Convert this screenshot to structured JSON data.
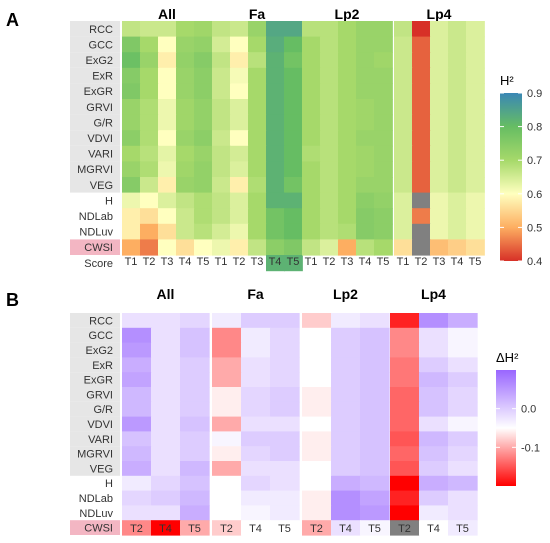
{
  "panel_labels": [
    "A",
    "B"
  ],
  "chart_data": [
    {
      "type": "heatmap",
      "panel": "A",
      "facets": [
        "All",
        "Fa",
        "Lp2",
        "Lp4"
      ],
      "rows": [
        "RCC",
        "GCC",
        "ExG2",
        "ExR",
        "ExGR",
        "GRVI",
        "G/R",
        "VDVI",
        "VARI",
        "MGRVI",
        "VEG",
        "H",
        "NDLab",
        "NDLuv",
        "CWSI",
        "Score"
      ],
      "columns": [
        "T1",
        "T2",
        "T3",
        "T4",
        "T5"
      ],
      "legend": {
        "title": "H²",
        "ticks": [
          "0.9",
          "0.8",
          "0.7",
          "0.6",
          "0.5",
          "0.4"
        ],
        "range": [
          0.4,
          0.9
        ],
        "colors": [
          "#d73027",
          "#fdae61",
          "#ffffbf",
          "#a6d96a",
          "#66bd63",
          "#3a87b5"
        ]
      },
      "values": {
        "All": [
          [
            0.67,
            0.66,
            0.66,
            0.7,
            0.71
          ],
          [
            0.76,
            0.7,
            0.6,
            0.72,
            0.73
          ],
          [
            0.79,
            0.72,
            0.58,
            0.73,
            0.75
          ],
          [
            0.75,
            0.7,
            0.6,
            0.72,
            0.74
          ],
          [
            0.76,
            0.7,
            0.6,
            0.72,
            0.74
          ],
          [
            0.72,
            0.69,
            0.62,
            0.71,
            0.73
          ],
          [
            0.72,
            0.69,
            0.62,
            0.71,
            0.73
          ],
          [
            0.74,
            0.69,
            0.6,
            0.72,
            0.74
          ],
          [
            0.7,
            0.68,
            0.63,
            0.7,
            0.72
          ],
          [
            0.72,
            0.69,
            0.62,
            0.71,
            0.73
          ],
          [
            0.75,
            0.66,
            0.58,
            0.72,
            0.73
          ],
          [
            0.62,
            0.6,
            0.64,
            0.67,
            0.69
          ],
          [
            0.58,
            0.56,
            0.6,
            0.66,
            0.69
          ],
          [
            0.58,
            0.5,
            0.56,
            0.66,
            0.68
          ],
          [
            0.5,
            0.46,
            0.6,
            0.56,
            0.6
          ],
          [
            null,
            null,
            null,
            null,
            null
          ]
        ],
        "Fa": [
          [
            0.67,
            0.66,
            0.72,
            0.84,
            0.84
          ],
          [
            0.65,
            0.6,
            0.7,
            0.83,
            0.8
          ],
          [
            0.67,
            0.58,
            0.68,
            0.82,
            0.78
          ],
          [
            0.66,
            0.61,
            0.7,
            0.82,
            0.8
          ],
          [
            0.66,
            0.6,
            0.7,
            0.82,
            0.8
          ],
          [
            0.67,
            0.64,
            0.7,
            0.82,
            0.8
          ],
          [
            0.67,
            0.64,
            0.7,
            0.82,
            0.8
          ],
          [
            0.66,
            0.6,
            0.7,
            0.82,
            0.8
          ],
          [
            0.67,
            0.65,
            0.7,
            0.82,
            0.8
          ],
          [
            0.67,
            0.64,
            0.7,
            0.82,
            0.8
          ],
          [
            0.66,
            0.58,
            0.69,
            0.82,
            0.78
          ],
          [
            0.67,
            0.64,
            0.7,
            0.82,
            0.82
          ],
          [
            0.67,
            0.64,
            0.7,
            0.78,
            0.8
          ],
          [
            0.65,
            0.62,
            0.7,
            0.78,
            0.8
          ],
          [
            0.62,
            0.58,
            0.67,
            0.74,
            0.76
          ],
          [
            null,
            null,
            null,
            0.82,
            0.82
          ]
        ],
        "Lp2": [
          [
            0.68,
            0.68,
            0.7,
            0.72,
            0.72
          ],
          [
            0.7,
            0.68,
            0.7,
            0.72,
            0.72
          ],
          [
            0.7,
            0.68,
            0.7,
            0.72,
            0.71
          ],
          [
            0.7,
            0.68,
            0.7,
            0.72,
            0.72
          ],
          [
            0.7,
            0.68,
            0.7,
            0.72,
            0.72
          ],
          [
            0.7,
            0.68,
            0.7,
            0.71,
            0.72
          ],
          [
            0.7,
            0.68,
            0.7,
            0.71,
            0.72
          ],
          [
            0.7,
            0.68,
            0.7,
            0.72,
            0.72
          ],
          [
            0.69,
            0.68,
            0.7,
            0.71,
            0.72
          ],
          [
            0.7,
            0.68,
            0.7,
            0.71,
            0.72
          ],
          [
            0.7,
            0.68,
            0.7,
            0.72,
            0.72
          ],
          [
            0.7,
            0.68,
            0.7,
            0.74,
            0.73
          ],
          [
            0.7,
            0.68,
            0.7,
            0.75,
            0.74
          ],
          [
            0.7,
            0.68,
            0.69,
            0.75,
            0.74
          ],
          [
            0.67,
            0.64,
            0.5,
            0.68,
            0.7
          ],
          [
            null,
            null,
            null,
            null,
            null
          ]
        ],
        "Lp4": [
          [
            0.67,
            0.4,
            0.64,
            0.66,
            0.64
          ],
          [
            0.66,
            0.44,
            0.64,
            0.66,
            0.64
          ],
          [
            0.66,
            0.44,
            0.64,
            0.66,
            0.64
          ],
          [
            0.66,
            0.44,
            0.64,
            0.66,
            0.64
          ],
          [
            0.66,
            0.44,
            0.64,
            0.66,
            0.64
          ],
          [
            0.66,
            0.44,
            0.64,
            0.66,
            0.64
          ],
          [
            0.66,
            0.44,
            0.64,
            0.66,
            0.64
          ],
          [
            0.66,
            0.44,
            0.64,
            0.66,
            0.64
          ],
          [
            0.66,
            0.44,
            0.64,
            0.66,
            0.64
          ],
          [
            0.66,
            0.44,
            0.64,
            0.66,
            0.64
          ],
          [
            0.66,
            0.44,
            0.64,
            0.66,
            0.64
          ],
          [
            0.64,
            null,
            0.62,
            0.64,
            0.62
          ],
          [
            0.64,
            0.46,
            0.62,
            0.64,
            0.62
          ],
          [
            0.64,
            null,
            0.62,
            0.64,
            0.62
          ],
          [
            0.56,
            null,
            0.52,
            0.54,
            0.56
          ],
          [
            null,
            null,
            null,
            null,
            null
          ]
        ]
      }
    },
    {
      "type": "heatmap",
      "panel": "B",
      "facets": [
        "All",
        "Fa",
        "Lp2",
        "Lp4"
      ],
      "rows": [
        "RCC",
        "GCC",
        "ExG2",
        "ExR",
        "ExGR",
        "GRVI",
        "G/R",
        "VDVI",
        "VARI",
        "MGRVI",
        "VEG",
        "H",
        "NDLab",
        "NDLuv",
        "CWSI"
      ],
      "columns": [
        "T2",
        "T4",
        "T5"
      ],
      "legend": {
        "title": "ΔH²",
        "ticks": [
          "0.0",
          "-0.1"
        ],
        "range": [
          -0.2,
          0.1
        ],
        "colors": [
          "#ff0000",
          "#ffffff",
          "#9966ff"
        ]
      },
      "values": {
        "All": [
          [
            -0.02,
            -0.02,
            -0.01
          ],
          [
            0.06,
            -0.02,
            0.01
          ],
          [
            0.05,
            -0.02,
            0.01
          ],
          [
            0.03,
            -0.02,
            0.0
          ],
          [
            0.04,
            -0.02,
            0.0
          ],
          [
            0.02,
            -0.02,
            0.0
          ],
          [
            0.02,
            -0.02,
            0.0
          ],
          [
            0.05,
            -0.02,
            0.01
          ],
          [
            0.01,
            -0.02,
            0.0
          ],
          [
            0.02,
            -0.02,
            0.0
          ],
          [
            0.03,
            -0.02,
            0.02
          ],
          [
            -0.03,
            -0.01,
            0.01
          ],
          [
            -0.01,
            0.0,
            0.02
          ],
          [
            -0.02,
            -0.02,
            0.03
          ],
          [
            -0.12,
            -0.22,
            -0.1
          ]
        ],
        "Fa": [
          [
            -0.03,
            0.0,
            0.0
          ],
          [
            -0.12,
            -0.03,
            -0.01
          ],
          [
            -0.12,
            -0.03,
            -0.01
          ],
          [
            -0.1,
            -0.02,
            -0.01
          ],
          [
            -0.1,
            -0.02,
            -0.01
          ],
          [
            -0.06,
            -0.01,
            0.0
          ],
          [
            -0.06,
            -0.01,
            0.0
          ],
          [
            -0.1,
            -0.02,
            -0.02
          ],
          [
            -0.04,
            0.0,
            0.0
          ],
          [
            -0.06,
            -0.01,
            0.0
          ],
          [
            -0.1,
            -0.02,
            -0.02
          ],
          [
            -0.05,
            -0.01,
            -0.02
          ],
          [
            -0.05,
            -0.03,
            -0.03
          ],
          [
            -0.05,
            -0.04,
            -0.03
          ],
          [
            -0.08,
            -0.05,
            -0.05
          ]
        ],
        "Lp2": [
          [
            -0.08,
            -0.03,
            -0.02
          ],
          [
            -0.05,
            0.0,
            0.01
          ],
          [
            -0.05,
            0.0,
            0.01
          ],
          [
            -0.05,
            0.0,
            0.01
          ],
          [
            -0.05,
            0.0,
            0.01
          ],
          [
            -0.06,
            0.0,
            0.01
          ],
          [
            -0.06,
            0.0,
            0.01
          ],
          [
            -0.05,
            0.0,
            0.01
          ],
          [
            -0.06,
            0.0,
            0.01
          ],
          [
            -0.06,
            0.0,
            0.01
          ],
          [
            -0.05,
            0.0,
            0.01
          ],
          [
            -0.05,
            0.03,
            0.02
          ],
          [
            -0.06,
            0.06,
            0.04
          ],
          [
            -0.06,
            0.06,
            0.05
          ],
          [
            -0.1,
            -0.02,
            -0.04
          ]
        ],
        "Lp4": [
          [
            -0.18,
            0.06,
            0.03
          ],
          [
            -0.12,
            -0.02,
            -0.04
          ],
          [
            -0.12,
            -0.02,
            -0.04
          ],
          [
            -0.13,
            0.0,
            -0.02
          ],
          [
            -0.13,
            0.02,
            0.0
          ],
          [
            -0.14,
            0.01,
            -0.01
          ],
          [
            -0.14,
            0.01,
            -0.01
          ],
          [
            -0.14,
            -0.02,
            -0.04
          ],
          [
            -0.15,
            0.02,
            0.0
          ],
          [
            -0.14,
            0.01,
            -0.01
          ],
          [
            -0.15,
            0.0,
            -0.02
          ],
          [
            -0.2,
            0.03,
            0.02
          ],
          [
            -0.18,
            0.0,
            -0.02
          ],
          [
            -0.2,
            -0.03,
            -0.02
          ],
          [
            null,
            -0.05,
            -0.03
          ]
        ]
      }
    }
  ]
}
